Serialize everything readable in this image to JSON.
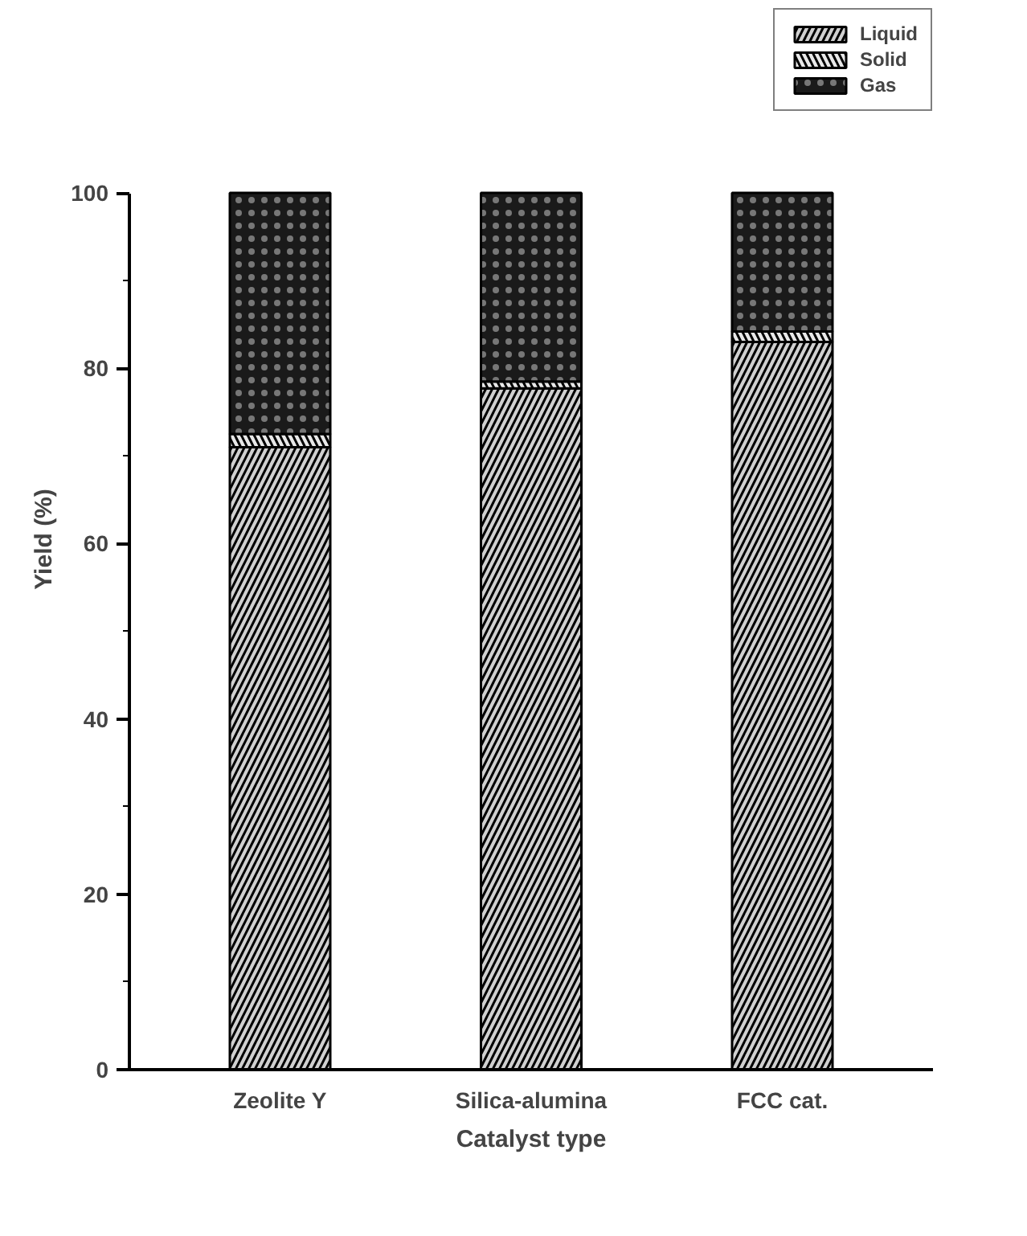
{
  "chart_data": {
    "type": "bar",
    "stacked": true,
    "xlabel": "Catalyst type",
    "ylabel": "Yield (%)",
    "categories": [
      "Zeolite Y",
      "Silica-alumina",
      "FCC cat."
    ],
    "series": [
      {
        "name": "Liquid",
        "color": "#d0d0d0",
        "values": [
          71,
          77.7,
          83
        ]
      },
      {
        "name": "Solid",
        "color": "#e8e8e8",
        "values": [
          1.5,
          0.8,
          1.2
        ]
      },
      {
        "name": "Gas",
        "color": "#1a1a1a",
        "values": [
          27.5,
          21.5,
          15.8
        ]
      }
    ],
    "ylim": [
      0,
      100
    ],
    "yticks": [
      0,
      20,
      40,
      60,
      80,
      100
    ],
    "grid": false,
    "legend": "top right"
  }
}
